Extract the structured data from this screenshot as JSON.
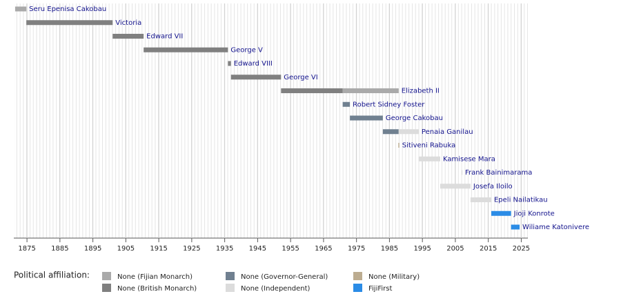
{
  "chart_data": {
    "type": "timeline",
    "xlim": [
      1871,
      2027
    ],
    "xticks": [
      1875,
      1885,
      1895,
      1905,
      1915,
      1925,
      1935,
      1945,
      1955,
      1965,
      1975,
      1985,
      1995,
      2005,
      2015,
      2025
    ],
    "legend_title": "Political affiliation:",
    "series": [
      {
        "name": "None (Fijian Monarch)",
        "color": "#aaaaaa"
      },
      {
        "name": "None (British Monarch)",
        "color": "#808080"
      },
      {
        "name": "None (Governor-General)",
        "color": "#708090"
      },
      {
        "name": "None (Independent)",
        "color": "#dcdcdc"
      },
      {
        "name": "None (Military)",
        "color": "#bcac90"
      },
      {
        "name": "FijiFirst",
        "color": "#2b8ce6"
      }
    ],
    "rows": [
      {
        "name": "Seru Epenisa Cakobau",
        "bars": [
          {
            "start": 1871.4,
            "end": 1874.8,
            "affiliation": 0
          }
        ]
      },
      {
        "name": "Victoria",
        "bars": [
          {
            "start": 1874.8,
            "end": 1901,
            "affiliation": 1
          }
        ]
      },
      {
        "name": "Edward VII",
        "bars": [
          {
            "start": 1901,
            "end": 1910.4,
            "affiliation": 1
          }
        ]
      },
      {
        "name": "George V",
        "bars": [
          {
            "start": 1910.4,
            "end": 1936,
            "affiliation": 1
          }
        ]
      },
      {
        "name": "Edward VIII",
        "bars": [
          {
            "start": 1936,
            "end": 1936.9,
            "affiliation": 1
          }
        ]
      },
      {
        "name": "George VI",
        "bars": [
          {
            "start": 1936.9,
            "end": 1952.1,
            "affiliation": 1
          }
        ]
      },
      {
        "name": "Elizabeth II",
        "bars": [
          {
            "start": 1952.1,
            "end": 1970.8,
            "affiliation": 1
          },
          {
            "start": 1970.8,
            "end": 1987.8,
            "affiliation": 0
          }
        ]
      },
      {
        "name": "Robert Sidney Foster",
        "bars": [
          {
            "start": 1970.8,
            "end": 1973,
            "affiliation": 2
          }
        ]
      },
      {
        "name": "George Cakobau",
        "bars": [
          {
            "start": 1973,
            "end": 1983,
            "affiliation": 2
          }
        ]
      },
      {
        "name": "Penaia Ganilau",
        "bars": [
          {
            "start": 1983,
            "end": 1987.8,
            "affiliation": 2
          },
          {
            "start": 1987.8,
            "end": 1993.9,
            "affiliation": 3
          }
        ]
      },
      {
        "name": "Sitiveni Rabuka",
        "bars": [
          {
            "start": 1987.7,
            "end": 1988,
            "affiliation": 4
          }
        ]
      },
      {
        "name": "Kamisese Mara",
        "bars": [
          {
            "start": 1993.9,
            "end": 2000.4,
            "affiliation": 3
          }
        ]
      },
      {
        "name": "Frank Bainimarama",
        "bars": [
          {
            "start": 2006.9,
            "end": 2007.1,
            "affiliation": 3
          }
        ]
      },
      {
        "name": "Josefa Iloilo",
        "bars": [
          {
            "start": 2000.4,
            "end": 2009.6,
            "affiliation": 3
          }
        ]
      },
      {
        "name": "Epeli Nailatikau",
        "bars": [
          {
            "start": 2009.6,
            "end": 2015.9,
            "affiliation": 3
          }
        ]
      },
      {
        "name": "Jioji Konrote",
        "bars": [
          {
            "start": 2015.9,
            "end": 2021.9,
            "affiliation": 5
          }
        ]
      },
      {
        "name": "Wiliame Katonivere",
        "bars": [
          {
            "start": 2021.9,
            "end": 2024.5,
            "affiliation": 5
          }
        ]
      }
    ]
  }
}
